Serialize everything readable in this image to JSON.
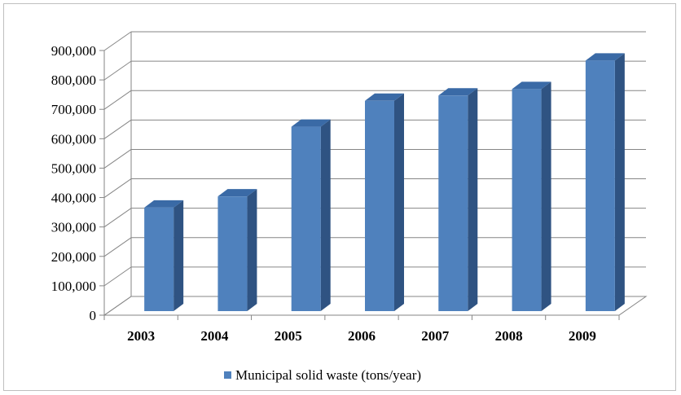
{
  "chart_data": {
    "type": "bar",
    "style": "3d-column",
    "categories": [
      "2003",
      "2004",
      "2005",
      "2006",
      "2007",
      "2008",
      "2009"
    ],
    "series": [
      {
        "name": "Municipal solid waste (tons/year)",
        "values": [
          352000,
          390000,
          627000,
          715000,
          733000,
          755000,
          852000
        ],
        "color": "#4f81bd"
      }
    ],
    "title": "",
    "xlabel": "",
    "ylabel": "",
    "ylim": [
      0,
      900000
    ],
    "yticks": [
      "0",
      "100,000",
      "200,000",
      "300,000",
      "400,000",
      "500,000",
      "600,000",
      "700,000",
      "800,000",
      "900,000"
    ],
    "grid": true,
    "legend_position": "bottom"
  },
  "colors": {
    "bar_front": "#4f81bd",
    "bar_side": "#2f5382",
    "bar_top": "#3a6aa6",
    "grid": "#868686",
    "axis": "#868686"
  }
}
